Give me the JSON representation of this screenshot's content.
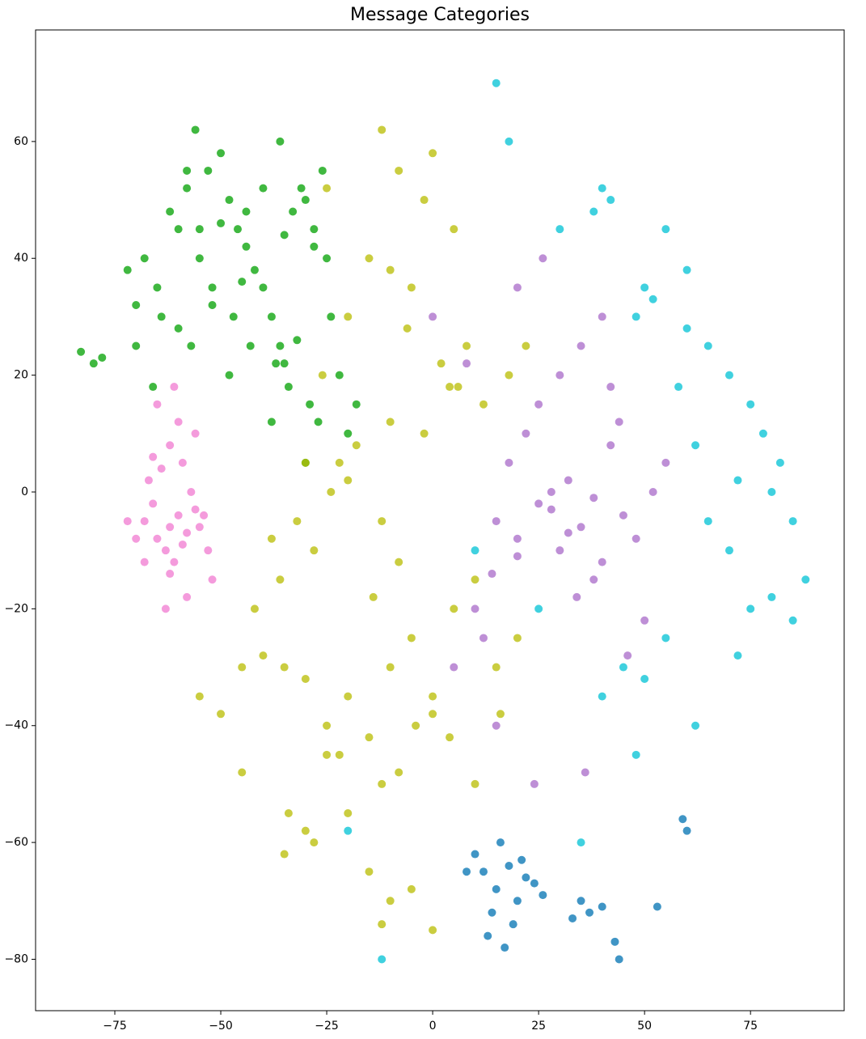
{
  "chart_data": {
    "type": "scatter",
    "title": "Message Categories",
    "xlim": [
      -93.7,
      97.1
    ],
    "ylim": [
      -88.8,
      79.1
    ],
    "xticks": [
      {
        "value": -75,
        "label": "−75"
      },
      {
        "value": -50,
        "label": "−50"
      },
      {
        "value": -25,
        "label": "−25"
      },
      0,
      25,
      50,
      75
    ],
    "yticks": [
      {
        "value": -80,
        "label": "−80"
      },
      {
        "value": -60,
        "label": "−60"
      },
      {
        "value": -40,
        "label": "−40"
      },
      {
        "value": -20,
        "label": "−20"
      },
      0,
      20,
      40,
      60
    ],
    "grid": false,
    "series": [
      {
        "color": "#00a000",
        "x": [
          -83,
          -80,
          -78,
          -72,
          -70,
          -68,
          -65,
          -62,
          -60,
          -58,
          -56,
          -55,
          -53,
          -50,
          -48,
          -46,
          -44,
          -42,
          -40,
          -38,
          -36,
          -35,
          -33,
          -31,
          -30,
          -28,
          -26,
          -25,
          -24,
          -22,
          -60,
          -57,
          -52,
          -47,
          -43,
          -37,
          -34,
          -29,
          -27,
          -64,
          -66,
          -70,
          -55,
          -50,
          -45,
          -40,
          -35,
          -32,
          -28,
          -48,
          -20,
          -18,
          -30,
          -38,
          -58,
          -52,
          -44,
          -36
        ],
        "values": [
          24,
          22,
          23,
          38,
          32,
          40,
          35,
          48,
          45,
          52,
          62,
          40,
          55,
          58,
          50,
          45,
          42,
          38,
          35,
          30,
          25,
          22,
          48,
          52,
          50,
          45,
          55,
          40,
          30,
          20,
          28,
          25,
          35,
          30,
          25,
          22,
          18,
          15,
          12,
          30,
          18,
          25,
          45,
          46,
          36,
          52,
          44,
          26,
          42,
          20,
          10,
          15,
          5,
          12,
          55,
          32,
          48,
          60
        ]
      },
      {
        "color": "#f07ad0",
        "x": [
          -68,
          -65,
          -62,
          -60,
          -58,
          -56,
          -63,
          -66,
          -61,
          -59,
          -57,
          -55,
          -64,
          -62,
          -60,
          -67,
          -70,
          -53,
          -52,
          -58,
          -65,
          -61,
          -56,
          -63,
          -68,
          -59,
          -54,
          -66,
          -62,
          -72
        ],
        "values": [
          -5,
          -8,
          -6,
          -4,
          -7,
          -3,
          -10,
          -2,
          -12,
          -9,
          0,
          -6,
          4,
          8,
          12,
          2,
          -8,
          -10,
          -15,
          -18,
          15,
          18,
          10,
          -20,
          -12,
          5,
          -4,
          6,
          -14,
          -5
        ]
      },
      {
        "color": "#b8bc00",
        "x": [
          -55,
          -50,
          -45,
          -40,
          -35,
          -30,
          -25,
          -20,
          -15,
          -10,
          -5,
          0,
          5,
          10,
          15,
          20,
          -32,
          -28,
          -24,
          -36,
          -42,
          -38,
          -22,
          -18,
          -12,
          -8,
          -2,
          4,
          8,
          -30,
          -26,
          -20,
          -14,
          -10,
          -6,
          2,
          6,
          12,
          18,
          22,
          -34,
          -28,
          -22,
          -12,
          -8,
          -4,
          0,
          4,
          10,
          16,
          -10,
          -12,
          -5,
          0,
          -15,
          -20,
          -30,
          -35,
          -25,
          -45,
          -12,
          -8,
          -2,
          -15,
          -20,
          -10,
          5,
          -25,
          0,
          -5
        ],
        "values": [
          -35,
          -38,
          -30,
          -28,
          -30,
          -32,
          -40,
          -35,
          -42,
          -30,
          -25,
          -38,
          -20,
          -15,
          -30,
          -25,
          -5,
          -10,
          0,
          -15,
          -20,
          -8,
          5,
          8,
          -5,
          -12,
          10,
          18,
          25,
          5,
          20,
          2,
          -18,
          12,
          28,
          22,
          18,
          15,
          20,
          25,
          -55,
          -60,
          -45,
          -50,
          -48,
          -40,
          -35,
          -42,
          -50,
          -38,
          -70,
          -74,
          -68,
          -75,
          -65,
          -55,
          -58,
          -62,
          -45,
          -48,
          62,
          55,
          50,
          40,
          30,
          38,
          45,
          52,
          58,
          35
        ]
      },
      {
        "color": "#a86ac8",
        "x": [
          15,
          20,
          25,
          30,
          35,
          40,
          45,
          18,
          22,
          28,
          32,
          38,
          42,
          48,
          25,
          30,
          35,
          40,
          10,
          12,
          20,
          26,
          34,
          44,
          50,
          55,
          5,
          15,
          24,
          36,
          46,
          28,
          32,
          38,
          20,
          14,
          42,
          52,
          8,
          0
        ],
        "values": [
          -5,
          -8,
          -2,
          -10,
          -6,
          -12,
          -4,
          5,
          10,
          0,
          2,
          -15,
          8,
          -8,
          15,
          20,
          25,
          30,
          -20,
          -25,
          35,
          40,
          -18,
          12,
          -22,
          5,
          -30,
          -40,
          -50,
          -48,
          -28,
          -3,
          -7,
          -1,
          -11,
          -14,
          18,
          0,
          22,
          30
        ]
      },
      {
        "color": "#00c2d4",
        "x": [
          40,
          42,
          38,
          50,
          52,
          48,
          55,
          60,
          65,
          70,
          75,
          78,
          80,
          82,
          85,
          88,
          70,
          72,
          65,
          62,
          58,
          60,
          75,
          80,
          85,
          55,
          50,
          45,
          40,
          35,
          30,
          48,
          62,
          72,
          15,
          18,
          -12,
          -20,
          10,
          25
        ],
        "values": [
          52,
          50,
          48,
          35,
          33,
          30,
          45,
          38,
          25,
          20,
          15,
          10,
          0,
          5,
          -5,
          -15,
          -10,
          2,
          -5,
          8,
          18,
          28,
          -20,
          -18,
          -22,
          -25,
          -32,
          -30,
          -35,
          -60,
          45,
          -45,
          -40,
          -28,
          70,
          60,
          -80,
          -58,
          -10,
          -20
        ]
      },
      {
        "color": "#0072b2",
        "x": [
          10,
          12,
          15,
          18,
          20,
          22,
          14,
          16,
          19,
          24,
          8,
          26,
          13,
          17,
          21,
          35,
          37,
          40,
          33,
          43,
          53,
          59,
          60,
          44
        ],
        "values": [
          -62,
          -65,
          -68,
          -64,
          -70,
          -66,
          -72,
          -60,
          -74,
          -67,
          -65,
          -69,
          -76,
          -78,
          -63,
          -70,
          -72,
          -71,
          -73,
          -77,
          -71,
          -56,
          -58,
          -80
        ]
      }
    ]
  }
}
